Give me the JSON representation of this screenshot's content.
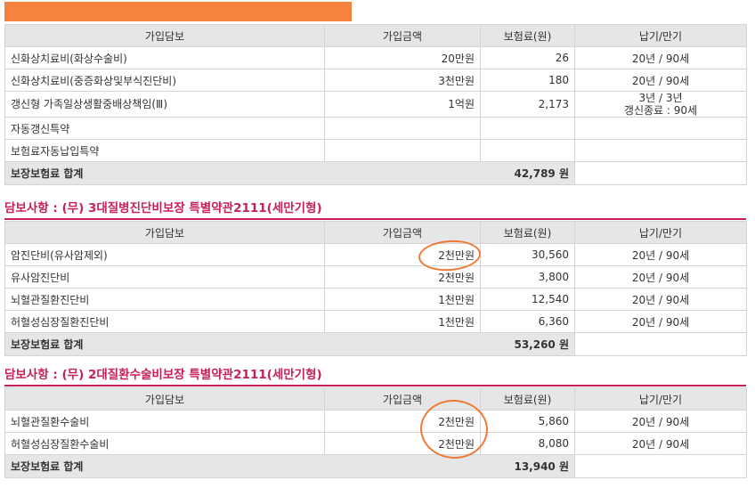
{
  "headers": {
    "coverage": "가입담보",
    "amount": "가입금액",
    "premium": "보험료(원)",
    "term": "납기/만기"
  },
  "table1": {
    "rows": [
      {
        "name": "신화상치료비(화상수술비)",
        "amount": "20만원",
        "premium": "26",
        "term": "20년 / 90세"
      },
      {
        "name": "신화상치료비(중증화상및부식진단비)",
        "amount": "3천만원",
        "premium": "180",
        "term": "20년 / 90세"
      },
      {
        "name": "갱신형 가족일상생활중배상책임(Ⅲ)",
        "amount": "1억원",
        "premium": "2,173",
        "term_line1": "3년 / 3년",
        "term_line2": "갱신종료 : 90세"
      },
      {
        "name": "자동갱신특약",
        "amount": "",
        "premium": "",
        "term": ""
      },
      {
        "name": "보험료자동납입특약",
        "amount": "",
        "premium": "",
        "term": ""
      }
    ],
    "total_label": "보장보험료 합계",
    "total_value": "42,789 원"
  },
  "section2": {
    "title": "담보사항 : (무) 3대질병진단비보장 특별약관2111(세만기형)",
    "rows": [
      {
        "name": "암진단비(유사암제외)",
        "amount": "2천만원",
        "premium": "30,560",
        "term": "20년 / 90세"
      },
      {
        "name": "유사암진단비",
        "amount": "2천만원",
        "premium": "3,800",
        "term": "20년 / 90세"
      },
      {
        "name": "뇌혈관질환진단비",
        "amount": "1천만원",
        "premium": "12,540",
        "term": "20년 / 90세"
      },
      {
        "name": "허혈성심장질환진단비",
        "amount": "1천만원",
        "premium": "6,360",
        "term": "20년 / 90세"
      }
    ],
    "total_label": "보장보험료 합계",
    "total_value": "53,260 원"
  },
  "section3": {
    "title": "담보사항 : (무) 2대질환수술비보장 특별약관2111(세만기형)",
    "rows": [
      {
        "name": "뇌혈관질환수술비",
        "amount": "2천만원",
        "premium": "5,860",
        "term": "20년 / 90세"
      },
      {
        "name": "허혈성심장질환수술비",
        "amount": "2천만원",
        "premium": "8,080",
        "term": "20년 / 90세"
      }
    ],
    "total_label": "보장보험료 합계",
    "total_value": "13,940 원"
  },
  "colors": {
    "accent": "#c8205a",
    "highlight_bar": "#f5823f",
    "circle": "#f07a35"
  }
}
